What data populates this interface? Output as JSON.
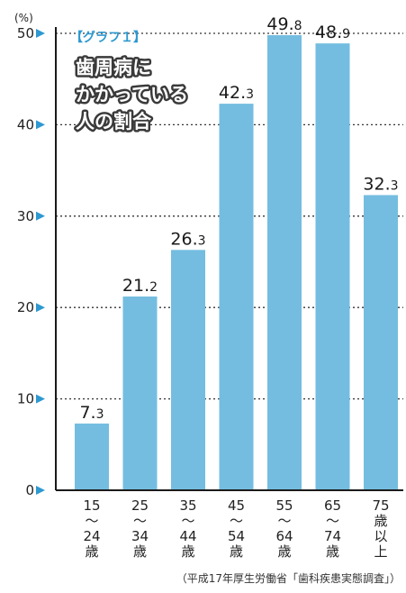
{
  "chart_data": {
    "type": "bar",
    "tag": "【グラフ１】",
    "title_lines": [
      "歯周病に",
      "かかっている",
      "人の割合"
    ],
    "unit": "(%)",
    "ylim": [
      0,
      50
    ],
    "yticks": [
      0,
      10,
      20,
      30,
      40,
      50
    ],
    "categories": [
      [
        "15",
        "〜",
        "24",
        "歳"
      ],
      [
        "25",
        "〜",
        "34",
        "歳"
      ],
      [
        "35",
        "〜",
        "44",
        "歳"
      ],
      [
        "45",
        "〜",
        "54",
        "歳"
      ],
      [
        "55",
        "〜",
        "64",
        "歳"
      ],
      [
        "65",
        "〜",
        "74",
        "歳"
      ],
      [
        "75",
        "歳",
        "以",
        "上"
      ]
    ],
    "values": [
      7.3,
      21.2,
      26.3,
      42.3,
      49.8,
      48.9,
      32.3
    ],
    "grid": true,
    "source": "（平成17年厚生労働省「歯科疾患実態調査」）"
  },
  "colors": {
    "bar": "#74bde0",
    "tick_marker": "#2e98d0",
    "axis": "#1a1a1a",
    "grid": "#333333"
  }
}
